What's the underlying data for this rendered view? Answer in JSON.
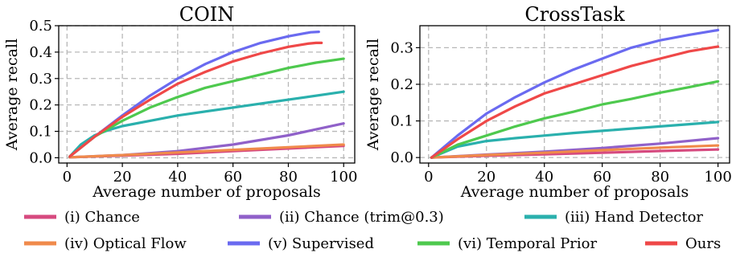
{
  "chart_data": [
    {
      "type": "line",
      "title": "COIN",
      "xlabel": "Average number of proposals",
      "ylabel": "Average recall",
      "xlim": [
        -3,
        104
      ],
      "ylim": [
        -0.02,
        0.5
      ],
      "xticks": [
        0,
        20,
        40,
        60,
        80,
        100
      ],
      "yticks": [
        0.0,
        0.1,
        0.2,
        0.3,
        0.4,
        0.5
      ],
      "ytick_labels": [
        "0.0",
        "0.1",
        "0.2",
        "0.3",
        "0.4",
        "0.5"
      ],
      "grid": true,
      "series": [
        {
          "name": "(i) Chance",
          "color": "#d64a7f",
          "x": [
            1,
            20,
            40,
            60,
            80,
            100
          ],
          "y": [
            0.002,
            0.008,
            0.015,
            0.025,
            0.035,
            0.045
          ]
        },
        {
          "name": "(ii) Chance (trim@0.3)",
          "color": "#9061c9",
          "x": [
            1,
            20,
            40,
            60,
            80,
            100
          ],
          "y": [
            0.002,
            0.01,
            0.025,
            0.05,
            0.085,
            0.13
          ]
        },
        {
          "name": "(iii) Hand Detector",
          "color": "#2ab0ad",
          "x": [
            1,
            5,
            10,
            15,
            20,
            30,
            40,
            60,
            80,
            100
          ],
          "y": [
            0.005,
            0.05,
            0.085,
            0.105,
            0.12,
            0.14,
            0.16,
            0.19,
            0.22,
            0.25
          ]
        },
        {
          "name": "(iv) Optical Flow",
          "color": "#f08a4b",
          "x": [
            1,
            20,
            40,
            60,
            80,
            100
          ],
          "y": [
            0.002,
            0.01,
            0.02,
            0.03,
            0.04,
            0.05
          ]
        },
        {
          "name": "(v) Supervised",
          "color": "#6a6af0",
          "x": [
            1,
            10,
            20,
            30,
            40,
            50,
            60,
            70,
            80,
            88,
            91
          ],
          "y": [
            0.005,
            0.08,
            0.16,
            0.235,
            0.3,
            0.355,
            0.4,
            0.435,
            0.46,
            0.475,
            0.477
          ]
        },
        {
          "name": "(vi) Temporal Prior",
          "color": "#4ec94e",
          "x": [
            1,
            10,
            20,
            30,
            40,
            50,
            60,
            70,
            80,
            90,
            100
          ],
          "y": [
            0.005,
            0.08,
            0.14,
            0.19,
            0.23,
            0.265,
            0.29,
            0.315,
            0.34,
            0.36,
            0.375
          ]
        },
        {
          "name": "Ours",
          "color": "#ef4848",
          "x": [
            1,
            10,
            20,
            30,
            40,
            50,
            60,
            70,
            80,
            87,
            90,
            92
          ],
          "y": [
            0.005,
            0.08,
            0.155,
            0.22,
            0.28,
            0.325,
            0.365,
            0.395,
            0.42,
            0.432,
            0.435,
            0.435
          ]
        }
      ]
    },
    {
      "type": "line",
      "title": "CrossTask",
      "xlabel": "Average number of proposals",
      "ylabel": "Average recall",
      "xlim": [
        -3,
        104
      ],
      "ylim": [
        -0.015,
        0.36
      ],
      "xticks": [
        0,
        20,
        40,
        60,
        80,
        100
      ],
      "yticks": [
        0.0,
        0.1,
        0.2,
        0.3
      ],
      "ytick_labels": [
        "0.0",
        "0.1",
        "0.2",
        "0.3"
      ],
      "grid": true,
      "series": [
        {
          "name": "(i) Chance",
          "color": "#d64a7f",
          "x": [
            1,
            20,
            40,
            60,
            80,
            100
          ],
          "y": [
            0.0,
            0.005,
            0.009,
            0.013,
            0.018,
            0.022
          ]
        },
        {
          "name": "(ii) Chance (trim@0.3)",
          "color": "#9061c9",
          "x": [
            1,
            20,
            40,
            60,
            80,
            100
          ],
          "y": [
            0.0,
            0.008,
            0.016,
            0.026,
            0.038,
            0.053
          ]
        },
        {
          "name": "(iii) Hand Detector",
          "color": "#2ab0ad",
          "x": [
            1,
            10,
            20,
            30,
            40,
            50,
            60,
            80,
            100
          ],
          "y": [
            0.0,
            0.03,
            0.045,
            0.053,
            0.06,
            0.067,
            0.073,
            0.085,
            0.097
          ]
        },
        {
          "name": "(iv) Optical Flow",
          "color": "#f08a4b",
          "x": [
            1,
            20,
            40,
            60,
            80,
            100
          ],
          "y": [
            0.0,
            0.007,
            0.013,
            0.02,
            0.027,
            0.033
          ]
        },
        {
          "name": "(v) Supervised",
          "color": "#6a6af0",
          "x": [
            1,
            10,
            20,
            30,
            40,
            50,
            60,
            70,
            80,
            90,
            100
          ],
          "y": [
            0.0,
            0.06,
            0.12,
            0.165,
            0.205,
            0.24,
            0.27,
            0.3,
            0.32,
            0.335,
            0.348
          ]
        },
        {
          "name": "(vi) Temporal Prior",
          "color": "#4ec94e",
          "x": [
            1,
            10,
            20,
            30,
            40,
            50,
            60,
            70,
            80,
            90,
            100
          ],
          "y": [
            0.0,
            0.035,
            0.06,
            0.085,
            0.107,
            0.125,
            0.145,
            0.16,
            0.177,
            0.192,
            0.208
          ]
        },
        {
          "name": "Ours",
          "color": "#ef4848",
          "x": [
            1,
            10,
            20,
            30,
            40,
            50,
            60,
            70,
            80,
            90,
            100
          ],
          "y": [
            0.0,
            0.05,
            0.1,
            0.14,
            0.175,
            0.2,
            0.225,
            0.25,
            0.27,
            0.29,
            0.303
          ]
        }
      ]
    }
  ],
  "legend": [
    {
      "label": "(i) Chance",
      "color": "#d64a7f"
    },
    {
      "label": "(ii) Chance (trim@0.3)",
      "color": "#9061c9"
    },
    {
      "label": "(iii) Hand Detector",
      "color": "#2ab0ad"
    },
    {
      "label": "(iv) Optical Flow",
      "color": "#f08a4b"
    },
    {
      "label": "(v) Supervised",
      "color": "#6a6af0"
    },
    {
      "label": "(vi) Temporal Prior",
      "color": "#4ec94e"
    },
    {
      "label": "Ours",
      "color": "#ef4848"
    }
  ]
}
